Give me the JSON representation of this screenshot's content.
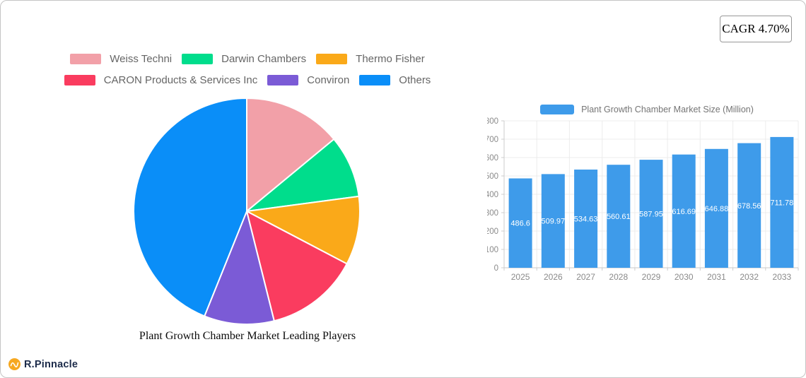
{
  "header": {
    "cagr_label": "CAGR 4.70%"
  },
  "footer": {
    "brand": "R.Pinnacle",
    "brand_icon": "orange-wave-circle-icon",
    "brand_icon_color": "#f6a821",
    "brand_text_color": "#1c2b4a"
  },
  "colors": {
    "card_border": "#c4c4c4",
    "badge_border": "#989898",
    "legend_text": "#666666",
    "axis_text": "#8a8a8a",
    "grid_line": "#ececec",
    "axis_line": "#cccccc"
  },
  "chart_data": [
    {
      "type": "pie",
      "title": "Plant Growth Chamber Market Leading Players",
      "labels": [
        "Weiss Techni",
        "Darwin Chambers",
        "Thermo Fisher",
        "CARON Products & Services Inc",
        "Conviron",
        "Others"
      ],
      "values": [
        14,
        8.9,
        9.8,
        13.4,
        10,
        43.9
      ],
      "values_note": "share % estimated from slice angles; no numeric labels shown on pie",
      "colors": [
        "#f2a0a8",
        "#00dd8c",
        "#faa919",
        "#fa3c5f",
        "#7b5bd6",
        "#0a8ef8"
      ],
      "start_angle_deg": -90,
      "direction": "clockwise",
      "slice_border_color": "#ffffff",
      "legend_position": "top"
    },
    {
      "type": "bar",
      "legend": "Plant Growth Chamber Market Size (Million)",
      "categories": [
        "2025",
        "2026",
        "2027",
        "2028",
        "2029",
        "2030",
        "2031",
        "2032",
        "2033"
      ],
      "values": [
        486.6,
        509.97,
        534.63,
        560.61,
        587.95,
        616.69,
        646.88,
        678.56,
        711.78
      ],
      "bar_color": "#3e9bea",
      "value_label_color": "#ffffff",
      "ylim": [
        0,
        800
      ],
      "ytick_step": 100,
      "grid": true,
      "legend_position": "top"
    }
  ]
}
